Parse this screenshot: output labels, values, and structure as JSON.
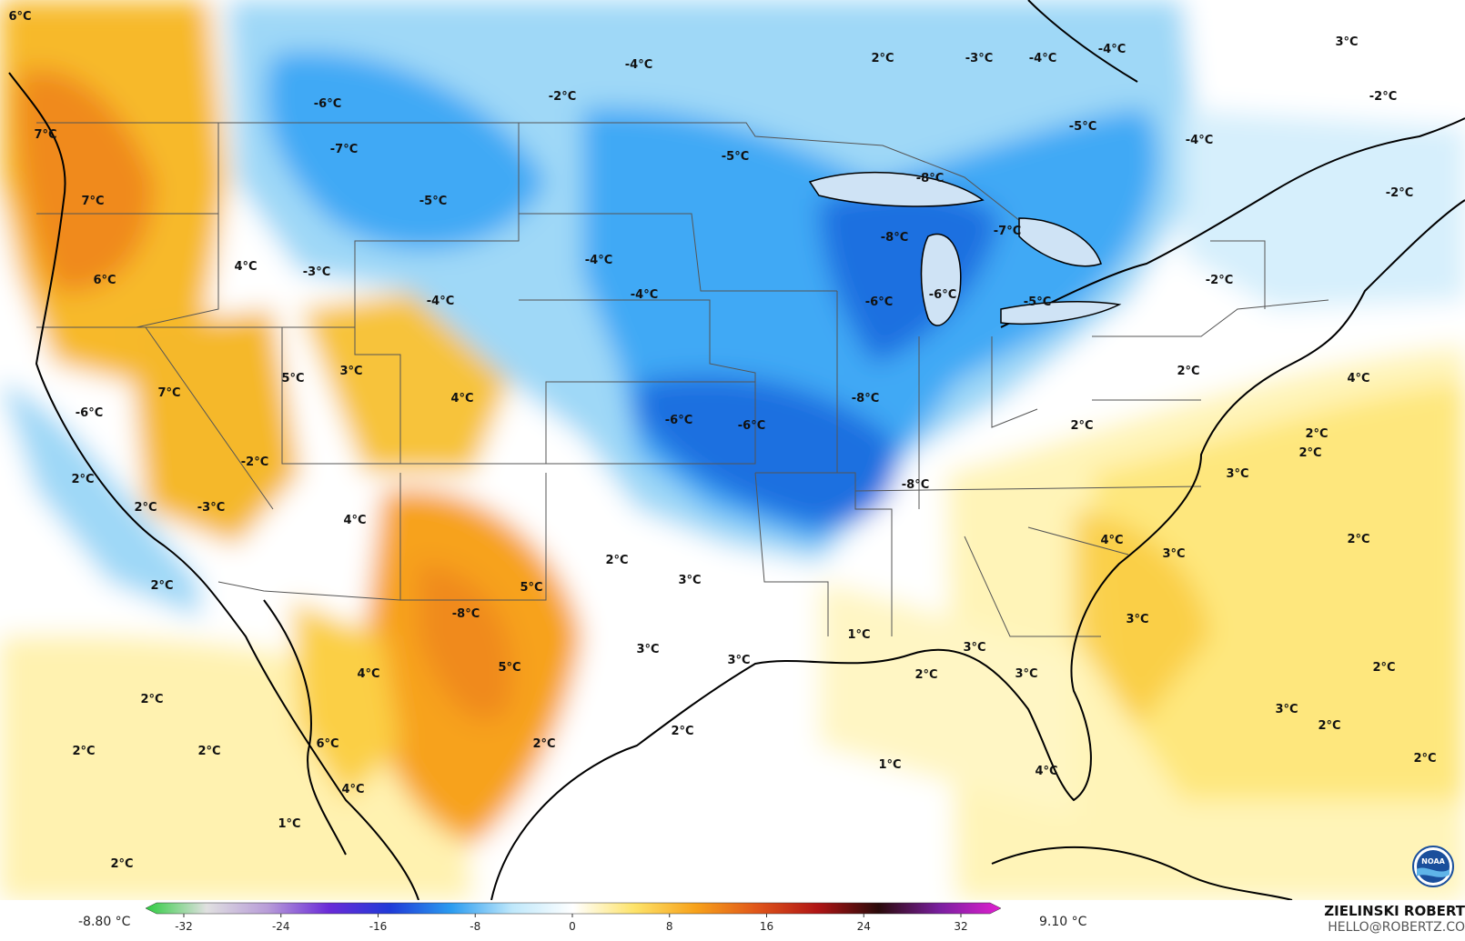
{
  "map": {
    "colors": {
      "cold_strong": "#1e6fe0",
      "cold_mid": "#3fa9f5",
      "cold_light": "#9fd8f7",
      "cold_pale": "#d6effc",
      "neutral": "#ffffff",
      "warm_pale": "#fff4b8",
      "warm_light": "#fde36a",
      "warm_mid": "#f7b92b",
      "warm_strong": "#f08a1c",
      "border": "#555555",
      "coast": "#000000"
    },
    "labels": [
      {
        "text": "6°C"
      },
      {
        "text": "-6°C"
      },
      {
        "text": "-2°C"
      },
      {
        "text": "-4°C"
      },
      {
        "text": "2°C"
      },
      {
        "text": "-3°C"
      },
      {
        "text": "-4°C"
      },
      {
        "text": "-4°C"
      },
      {
        "text": "3°C"
      },
      {
        "text": "-2°C"
      },
      {
        "text": "-7°C"
      },
      {
        "text": "-5°C"
      },
      {
        "text": "-5°C"
      },
      {
        "text": "-8°C"
      },
      {
        "text": "-5°C"
      },
      {
        "text": "-4°C"
      },
      {
        "text": "7°C"
      },
      {
        "text": "7°C"
      },
      {
        "text": "-2°C"
      },
      {
        "text": "-8°C"
      },
      {
        "text": "-7°C"
      },
      {
        "text": "4°C"
      },
      {
        "text": "-3°C"
      },
      {
        "text": "-4°C"
      },
      {
        "text": "-4°C"
      },
      {
        "text": "6°C"
      },
      {
        "text": "-4°C"
      },
      {
        "text": "-6°C"
      },
      {
        "text": "-6°C"
      },
      {
        "text": "-5°C"
      },
      {
        "text": "-2°C"
      },
      {
        "text": "3°C"
      },
      {
        "text": "5°C"
      },
      {
        "text": "7°C"
      },
      {
        "text": "4°C"
      },
      {
        "text": "-8°C"
      },
      {
        "text": "2°C"
      },
      {
        "text": "4°C"
      },
      {
        "text": "-6°C"
      },
      {
        "text": "-6°C"
      },
      {
        "text": "-6°C"
      },
      {
        "text": "2°C"
      },
      {
        "text": "2°C"
      },
      {
        "text": "-2°C"
      },
      {
        "text": "-8°C"
      },
      {
        "text": "3°C"
      },
      {
        "text": "2°C"
      },
      {
        "text": "-3°C"
      },
      {
        "text": "2°C"
      },
      {
        "text": "4°C"
      },
      {
        "text": "2°C"
      },
      {
        "text": "2°C"
      },
      {
        "text": "5°C"
      },
      {
        "text": "3°C"
      },
      {
        "text": "3°C"
      },
      {
        "text": "-8°C"
      },
      {
        "text": "4°C"
      },
      {
        "text": "2°C"
      },
      {
        "text": "3°C"
      },
      {
        "text": "1°C"
      },
      {
        "text": "3°C"
      },
      {
        "text": "3°C"
      },
      {
        "text": "3°C"
      },
      {
        "text": "3°C"
      },
      {
        "text": "4°C"
      },
      {
        "text": "5°C"
      },
      {
        "text": "2°C"
      },
      {
        "text": "3°C"
      },
      {
        "text": "2°C"
      },
      {
        "text": "2°C"
      },
      {
        "text": "2°C"
      },
      {
        "text": "2°C"
      },
      {
        "text": "6°C"
      },
      {
        "text": "2°C"
      },
      {
        "text": "2°C"
      },
      {
        "text": "2°C"
      },
      {
        "text": "4°C"
      },
      {
        "text": "1°C"
      },
      {
        "text": "4°C"
      },
      {
        "text": "2°C"
      },
      {
        "text": "2°C"
      },
      {
        "text": "1°C"
      },
      {
        "text": "2°C"
      }
    ]
  },
  "colorbar": {
    "min_label": "-8.80 °C",
    "max_label": "9.10 °C",
    "ticks": [
      "-32",
      "-24",
      "-16",
      "-8",
      "0",
      "8",
      "16",
      "24",
      "32"
    ],
    "colors": [
      "#2ecc40",
      "#e0e0e0",
      "#b89cd8",
      "#6a2ad8",
      "#1f3ad8",
      "#2b9cf0",
      "#bfe8fb",
      "#ffffff",
      "#fde36a",
      "#f7a21b",
      "#e0561a",
      "#b01515",
      "#2a0a0a",
      "#7a1fa0",
      "#e01fd0"
    ]
  },
  "credit": {
    "name": "ZIELINSKI ROBERT",
    "email": "HELLO@ROBERTZ.CO"
  },
  "logo": {
    "icon": "noaa-logo",
    "text": "NOAA"
  }
}
